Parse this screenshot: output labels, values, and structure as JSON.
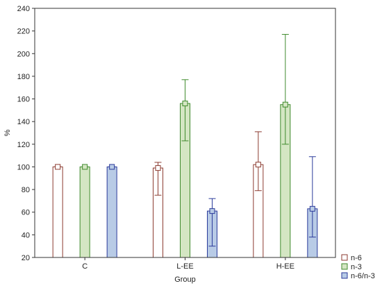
{
  "chart_data": {
    "type": "bar",
    "xlabel": "Group",
    "ylabel": "%",
    "ylim": [
      20,
      240
    ],
    "yticks": [
      20,
      40,
      60,
      80,
      100,
      120,
      140,
      160,
      180,
      200,
      220,
      240
    ],
    "categories": [
      "C",
      "L-EE",
      "H-EE"
    ],
    "grid": false,
    "legend_position": "bottom-right",
    "series": [
      {
        "name": "n-6",
        "fill": "#ffffff",
        "stroke": "#8b3a2f",
        "values": [
          100,
          99,
          102
        ],
        "error_low": [
          100,
          75,
          79
        ],
        "error_high": [
          100,
          104,
          131
        ]
      },
      {
        "name": "n-3",
        "fill": "#d4e6c3",
        "stroke": "#3f8a2c",
        "values": [
          100,
          156,
          155
        ],
        "error_low": [
          100,
          123,
          120
        ],
        "error_high": [
          100,
          177,
          217
        ]
      },
      {
        "name": "n-6/n-3",
        "fill": "#b8cbe6",
        "stroke": "#2a3a9a",
        "values": [
          100,
          61,
          63
        ],
        "error_low": [
          100,
          30,
          38
        ],
        "error_high": [
          100,
          72,
          109
        ]
      }
    ]
  }
}
